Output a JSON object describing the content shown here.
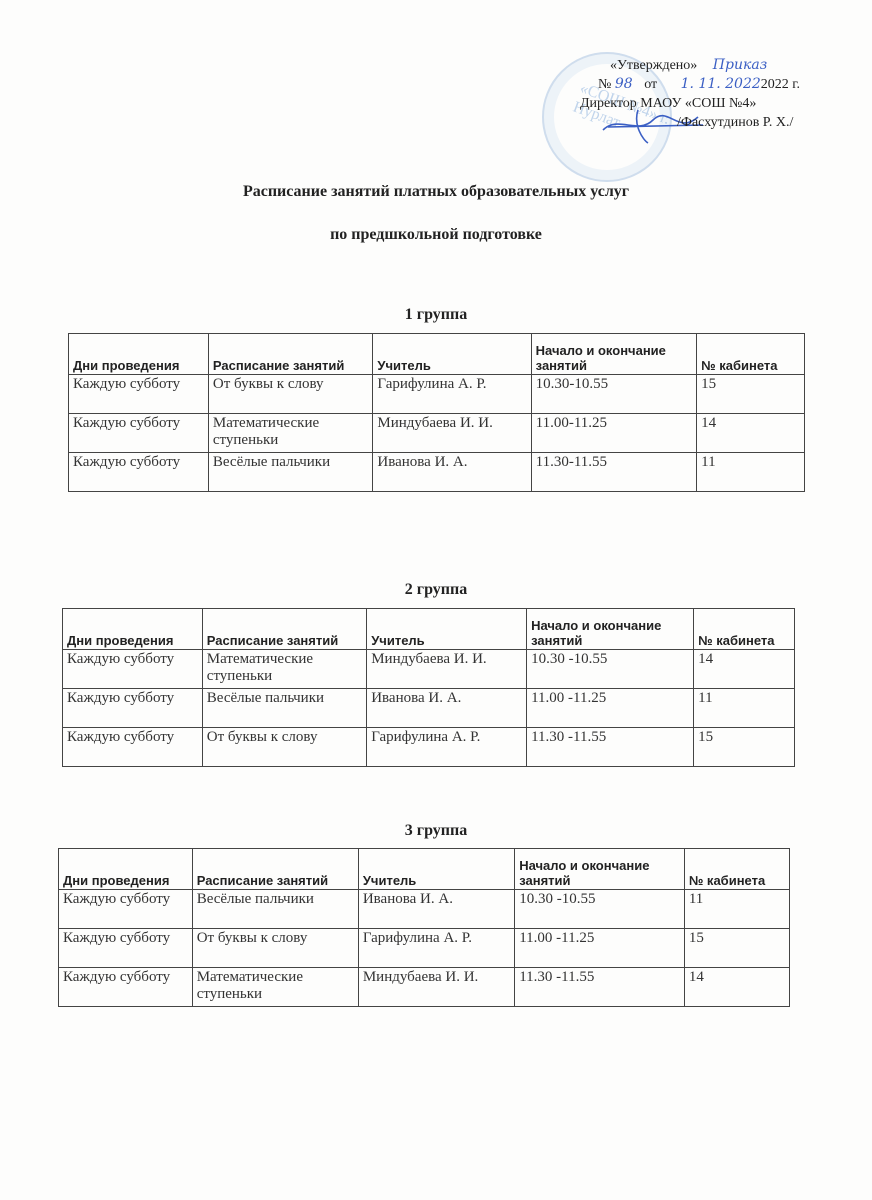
{
  "approval": {
    "approved": "«Утверждено»",
    "order_handwritten": "Приказ",
    "number_label": "№",
    "number_handwritten": "98",
    "from_label": "от",
    "date_handwritten": "1. 11. 2022",
    "year": "2022 г.",
    "director": "Директор МАОУ «СОШ №4»",
    "name": "/Фасхутдинов Р. Х./",
    "stamp_text": "«СОШ №4» г. Нурлат"
  },
  "title_line1": "Расписание занятий платных образовательных услуг",
  "title_line2": "по предшкольной подготовке",
  "headers": [
    "Дни проведения",
    "Расписание занятий",
    "Учитель",
    "Начало и окончание занятий",
    "№ кабинета"
  ],
  "groups": [
    {
      "label": "1 группа",
      "rows": [
        [
          "Каждую субботу",
          "От буквы к слову",
          "Гарифулина А. Р.",
          "10.30-10.55",
          "15"
        ],
        [
          "Каждую субботу",
          "Математические ступеньки",
          "Миндубаева И. И.",
          "11.00-11.25",
          "14"
        ],
        [
          "Каждую субботу",
          "Весёлые пальчики",
          "Иванова И. А.",
          "11.30-11.55",
          "11"
        ]
      ]
    },
    {
      "label": "2 группа",
      "rows": [
        [
          "Каждую субботу",
          "Математические ступеньки",
          "Миндубаева И. И.",
          "10.30 -10.55",
          "14"
        ],
        [
          "Каждую субботу",
          "Весёлые пальчики",
          "Иванова И. А.",
          "11.00 -11.25",
          "11"
        ],
        [
          "Каждую субботу",
          "От буквы к слову",
          "Гарифулина А. Р.",
          "11.30 -11.55",
          "15"
        ]
      ]
    },
    {
      "label": "3 группа",
      "rows": [
        [
          "Каждую субботу",
          "Весёлые пальчики",
          "Иванова И. А.",
          "10.30 -10.55",
          "11"
        ],
        [
          "Каждую субботу",
          "От буквы к слову",
          "Гарифулина А. Р.",
          "11.00 -11.25",
          "15"
        ],
        [
          "Каждую субботу",
          "Математические ступеньки",
          "Миндубаева И. И.",
          "11.30 -11.55",
          "14"
        ]
      ]
    }
  ]
}
